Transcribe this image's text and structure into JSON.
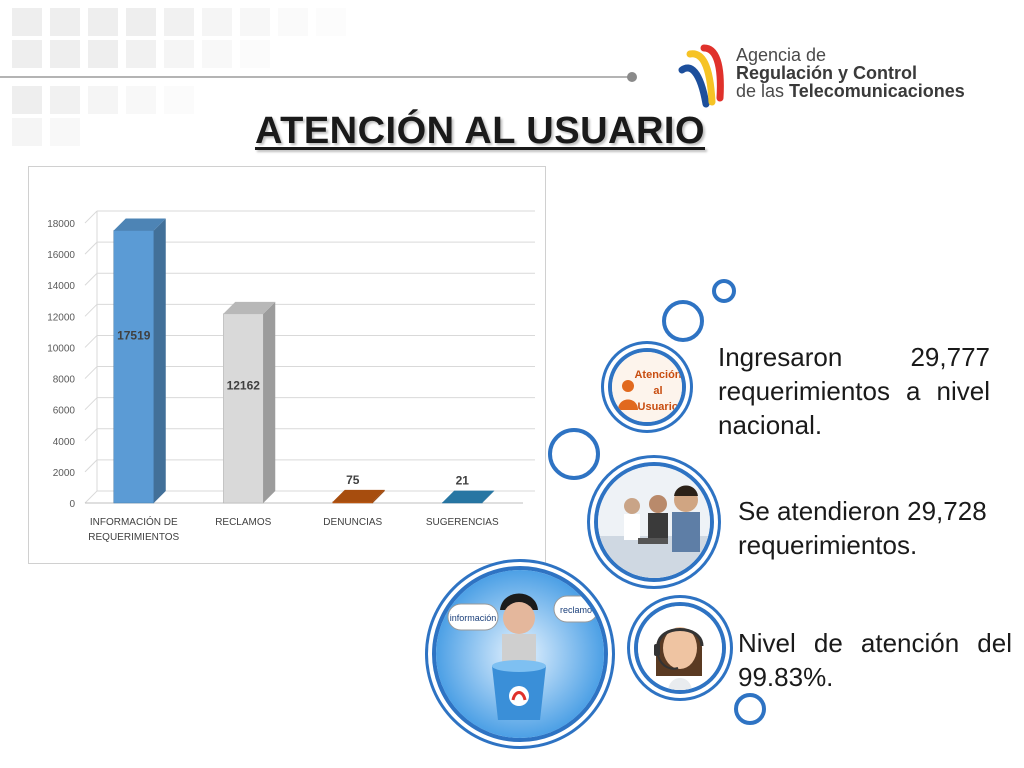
{
  "slide": {
    "title": "ATENCIÓN AL USUARIO"
  },
  "logo": {
    "line1": "Agencia de",
    "line2": "Regulación y Control",
    "line3_prefix": "de las ",
    "line3_bold": "Telecomunicaciones"
  },
  "chart_data": {
    "type": "bar",
    "categories": [
      "INFORMACIÓN DE REQUERIMIENTOS",
      "RECLAMOS",
      "DENUNCIAS",
      "SUGERENCIAS"
    ],
    "category_lines": [
      [
        "INFORMACIÓN DE",
        "REQUERIMIENTOS"
      ],
      [
        "RECLAMOS"
      ],
      [
        "DENUNCIAS"
      ],
      [
        "SUGERENCIAS"
      ]
    ],
    "values": [
      17519,
      12162,
      75,
      21
    ],
    "data_labels": [
      "17519",
      "12162",
      "75",
      "21"
    ],
    "colors": [
      "#5b9bd5",
      "#d9d9d9",
      "#c55a11",
      "#2e8bc0"
    ],
    "ylim": [
      0,
      18000
    ],
    "yticks": [
      0,
      2000,
      4000,
      6000,
      8000,
      10000,
      12000,
      14000,
      16000,
      18000
    ],
    "grid": true,
    "style": "3d-column"
  },
  "stats": [
    {
      "text": "Ingresaron 29,777 requerimientos a nivel nacional."
    },
    {
      "text": "Se atendieron 29,728 requerimientos."
    },
    {
      "text": "Nivel de atención del 99.83%."
    }
  ],
  "images": {
    "atencion_badge": [
      "Atención",
      "al",
      "Usuario"
    ],
    "bubble_info": "información",
    "bubble_reclamo": "reclamo"
  },
  "colors": {
    "accent_blue": "#2e73c3",
    "logo_red": "#e0312b",
    "logo_yellow": "#f6c325",
    "logo_blue": "#1d4f9c"
  }
}
